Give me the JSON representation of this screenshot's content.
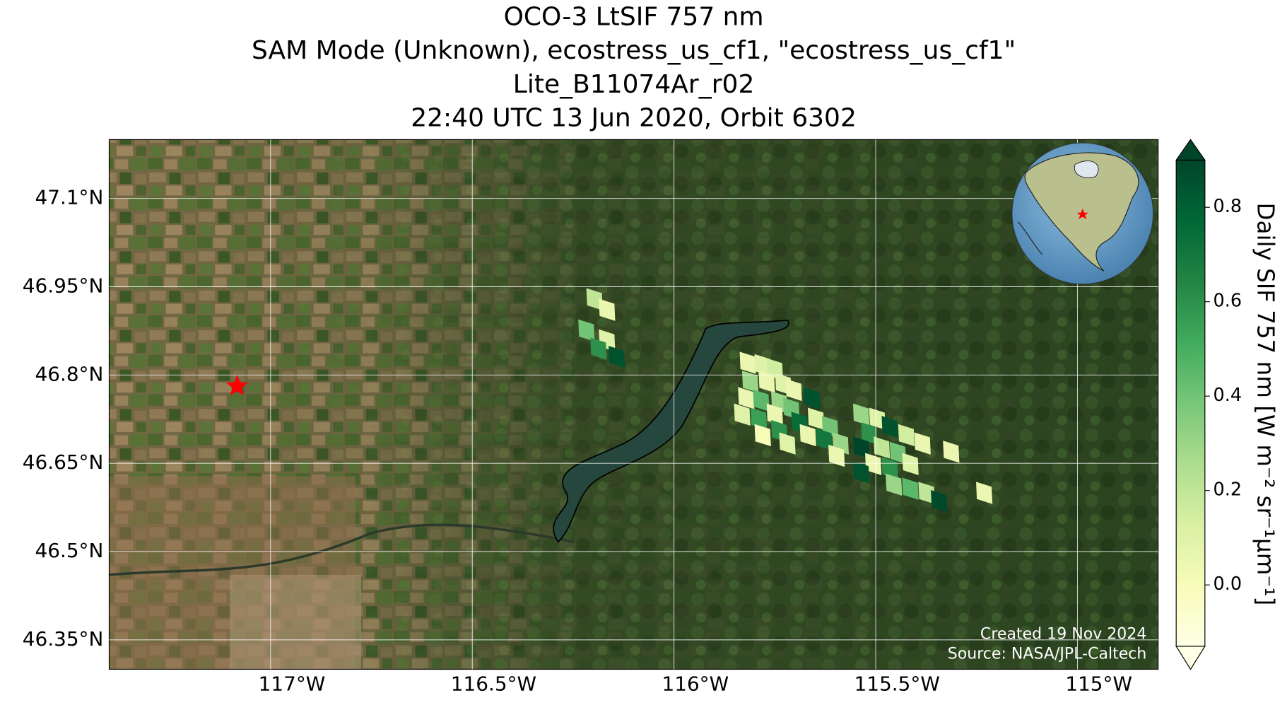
{
  "chart_data": {
    "type": "map",
    "title_lines": [
      "OCO-3 LtSIF 757 nm",
      "SAM Mode (Unknown), ecostress_us_cf1, \"ecostress_us_cf1\"",
      "Lite_B11074Ar_r02",
      "22:40 UTC 13 Jun 2020, Orbit 6302"
    ],
    "xlim": [
      -117.4,
      -114.8
    ],
    "ylim": [
      46.3,
      47.2
    ],
    "xticks": [
      {
        "value": -117,
        "label": "117°W"
      },
      {
        "value": -116.5,
        "label": "116.5°W"
      },
      {
        "value": -116,
        "label": "116°W"
      },
      {
        "value": -115.5,
        "label": "115.5°W"
      },
      {
        "value": -115,
        "label": "115°W"
      }
    ],
    "yticks": [
      {
        "value": 46.35,
        "label": "46.35°N"
      },
      {
        "value": 46.5,
        "label": "46.5°N"
      },
      {
        "value": 46.65,
        "label": "46.65°N"
      },
      {
        "value": 46.8,
        "label": "46.8°N"
      },
      {
        "value": 46.95,
        "label": "46.95°N"
      },
      {
        "value": 47.1,
        "label": "47.1°N"
      }
    ],
    "grid": true,
    "x": [
      -116.197,
      -116.166,
      -116.217,
      -116.166,
      -116.187,
      -116.142,
      -115.817,
      -115.78,
      -115.75,
      -115.811,
      -115.77,
      -115.729,
      -115.821,
      -115.784,
      -115.739,
      -115.703,
      -115.831,
      -115.79,
      -115.75,
      -115.709,
      -115.658,
      -115.78,
      -115.739,
      -115.689,
      -115.648,
      -115.613,
      -115.719,
      -115.668,
      -115.628,
      -115.587,
      -115.597,
      -115.536,
      -115.496,
      -115.516,
      -115.465,
      -115.424,
      -115.384,
      -115.536,
      -115.485,
      -115.445,
      -115.506,
      -115.465,
      -115.414,
      -115.536,
      -115.455,
      -115.414,
      -115.374,
      -115.343,
      -115.313,
      -115.231
    ],
    "y": [
      46.928,
      46.91,
      46.875,
      46.858,
      46.844,
      46.83,
      46.82,
      46.816,
      46.809,
      46.788,
      46.788,
      46.784,
      46.76,
      46.756,
      46.753,
      46.774,
      46.732,
      46.725,
      46.732,
      46.742,
      46.76,
      46.697,
      46.704,
      46.718,
      46.725,
      46.711,
      46.683,
      46.697,
      46.69,
      46.683,
      46.662,
      46.732,
      46.725,
      46.7,
      46.711,
      46.697,
      46.683,
      46.676,
      46.676,
      46.667,
      46.648,
      46.641,
      46.648,
      46.634,
      46.613,
      46.606,
      46.599,
      46.585,
      46.669,
      46.599
    ],
    "values": [
      0.2,
      0.05,
      0.4,
      0.1,
      0.6,
      0.85,
      0.05,
      0.1,
      0.15,
      0.3,
      0.05,
      0.1,
      0.05,
      0.45,
      0.3,
      0.05,
      0.1,
      0.55,
      0.05,
      0.4,
      0.85,
      0.0,
      0.6,
      0.75,
      0.1,
      0.4,
      0.1,
      0.05,
      0.7,
      0.3,
      0.05,
      0.3,
      0.1,
      0.6,
      0.85,
      0.15,
      0.05,
      0.9,
      0.2,
      0.4,
      0.05,
      0.6,
      0.1,
      0.85,
      0.3,
      0.45,
      0.2,
      0.88,
      0.05,
      0.05
    ],
    "colormap": "YlGn",
    "target": {
      "x": -117.083,
      "y": 46.781,
      "color": "#ff0000"
    },
    "colorbar": {
      "label": "Daily SIF 757 nm [W m⁻² sr⁻¹μm⁻¹]",
      "clim": [
        -0.13,
        0.9
      ],
      "ticks": [
        {
          "value": 0,
          "label": "0.0"
        },
        0.2,
        0.4,
        0.6,
        0.8
      ]
    },
    "annotations": [
      "Created 19 Nov 2024",
      "Source: NASA/JPL-Caltech"
    ]
  }
}
